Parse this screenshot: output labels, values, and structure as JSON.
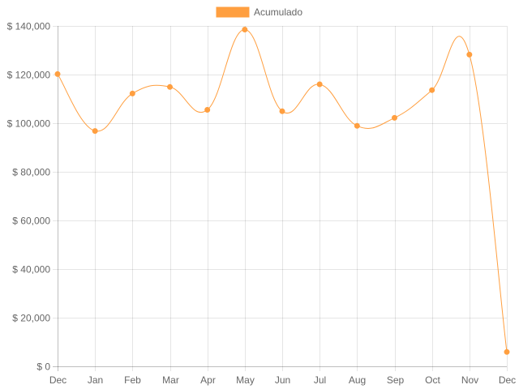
{
  "chart_data": {
    "type": "line",
    "categories": [
      "Dec",
      "Jan",
      "Feb",
      "Mar",
      "Apr",
      "May",
      "Jun",
      "Jul",
      "Aug",
      "Sep",
      "Oct",
      "Nov",
      "Dec"
    ],
    "series": [
      {
        "name": "Acumulado",
        "values": [
          120200,
          96800,
          112200,
          114900,
          105500,
          138500,
          104900,
          116000,
          98900,
          102200,
          113600,
          128200,
          5900
        ],
        "color": "#ff9f40"
      }
    ],
    "title": "",
    "xlabel": "",
    "ylabel": "",
    "ylim": [
      0,
      140000
    ],
    "yticks": [
      0,
      20000,
      40000,
      60000,
      80000,
      100000,
      120000,
      140000
    ],
    "ytick_labels": [
      "$ 0",
      "$ 20,000",
      "$ 40,000",
      "$ 60,000",
      "$ 80,000",
      "$ 100,000",
      "$ 120,000",
      "$ 140,000"
    ],
    "grid": true,
    "legend_position": "top-center",
    "curve": "smooth"
  }
}
